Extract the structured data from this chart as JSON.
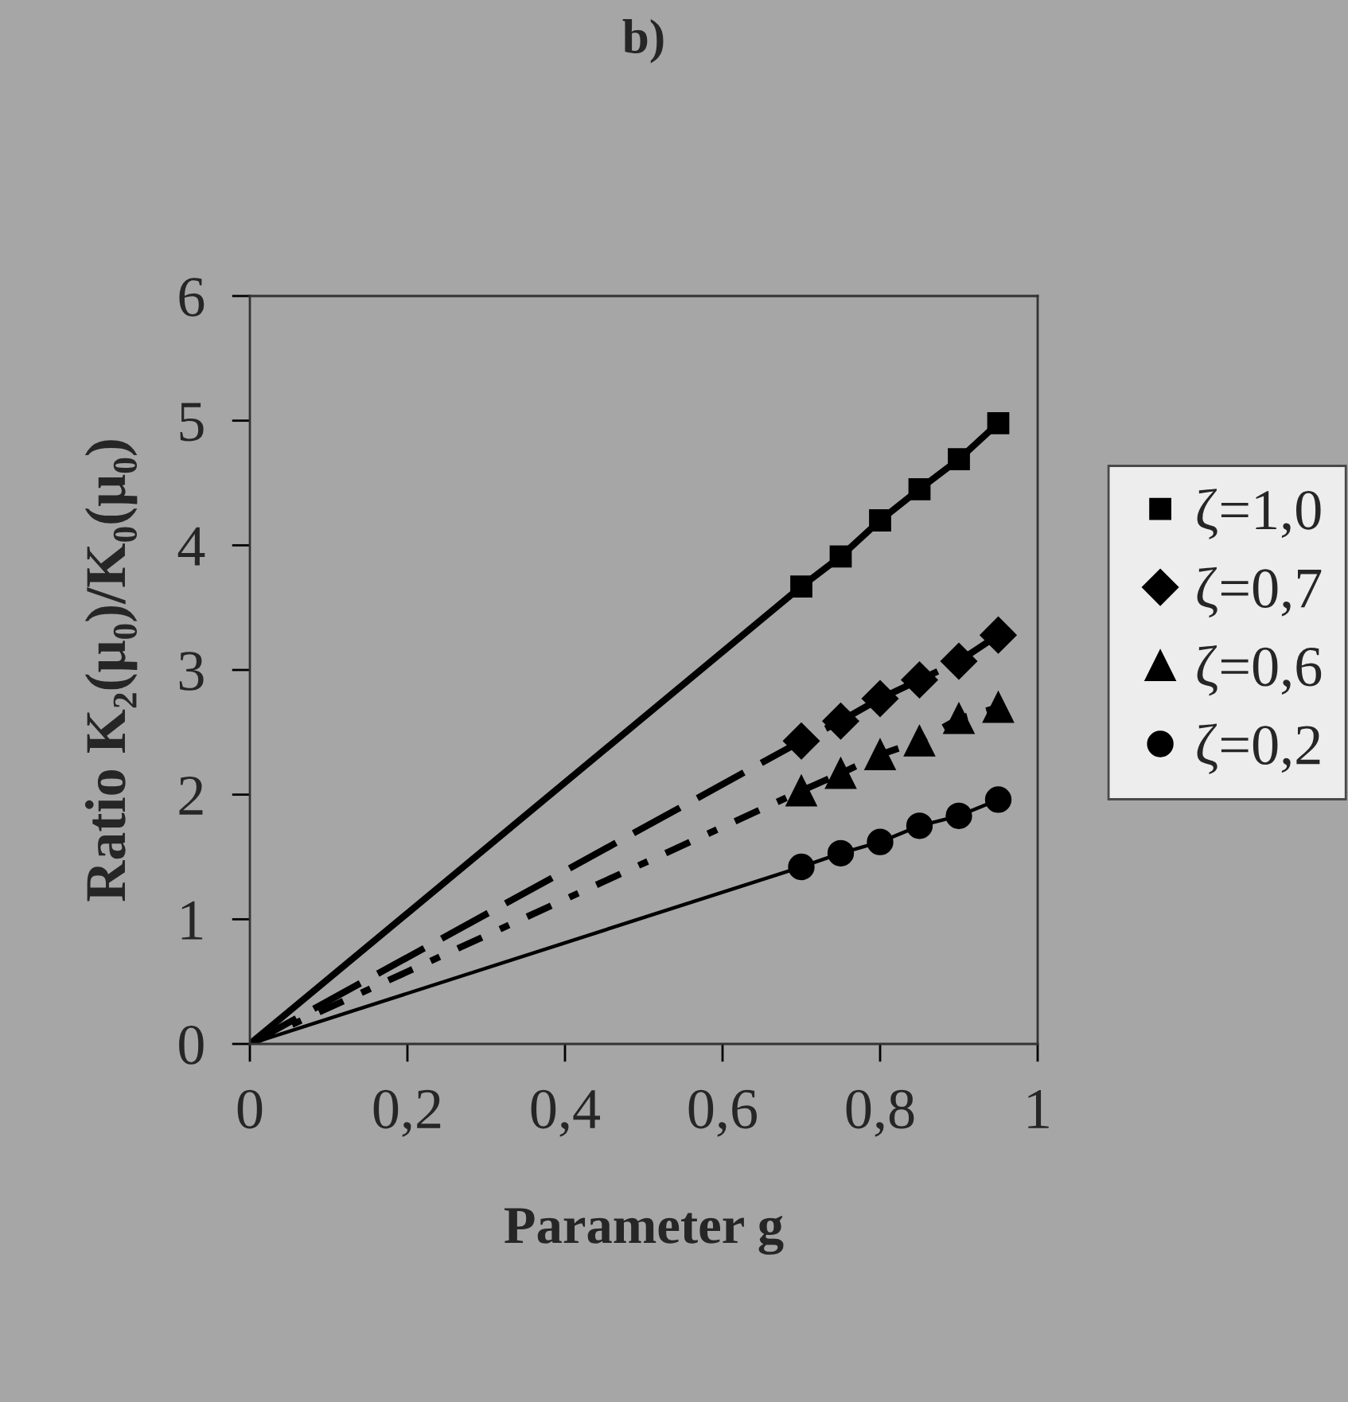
{
  "chart_data": {
    "type": "line",
    "title": "b)",
    "xlabel": "Parameter g",
    "ylabel": "Ratio K₂(μ₀)/K₀(μ₀)",
    "xlim": [
      0,
      1
    ],
    "ylim": [
      0,
      6
    ],
    "xticks": [
      0,
      {
        "value": 0.2,
        "label": "0,2"
      },
      {
        "value": 0.4,
        "label": "0,4"
      },
      {
        "value": 0.6,
        "label": "0,6"
      },
      {
        "value": 0.8,
        "label": "0,8"
      },
      1
    ],
    "yticks": [
      0,
      1,
      2,
      3,
      4,
      5,
      6
    ],
    "grid": false,
    "legend": "right",
    "series": [
      {
        "name": "ζ=1,0",
        "color": "#000000",
        "marker": "square",
        "line_style": "solid",
        "x": [
          0,
          0.7,
          0.75,
          0.8,
          0.85,
          0.9,
          0.95
        ],
        "values": [
          0,
          3.67,
          3.91,
          4.2,
          4.45,
          4.69,
          4.98
        ]
      },
      {
        "name": "ζ=0,7",
        "color": "#000000",
        "marker": "diamond",
        "line_style": "dashed",
        "x": [
          0,
          0.7,
          0.75,
          0.8,
          0.85,
          0.9,
          0.95
        ],
        "values": [
          0,
          2.43,
          2.59,
          2.77,
          2.92,
          3.07,
          3.28
        ]
      },
      {
        "name": "ζ=0,6",
        "color": "#000000",
        "marker": "triangle",
        "line_style": "dotted",
        "x": [
          0,
          0.7,
          0.75,
          0.8,
          0.85,
          0.9,
          0.95
        ],
        "values": [
          0,
          2.03,
          2.17,
          2.32,
          2.43,
          2.61,
          2.7
        ]
      },
      {
        "name": "ζ=0,2",
        "color": "#000000",
        "marker": "circle",
        "line_style": "solid",
        "x": [
          0,
          0.7,
          0.75,
          0.8,
          0.85,
          0.9,
          0.95
        ],
        "values": [
          0,
          1.42,
          1.53,
          1.62,
          1.75,
          1.83,
          1.96
        ]
      }
    ]
  }
}
